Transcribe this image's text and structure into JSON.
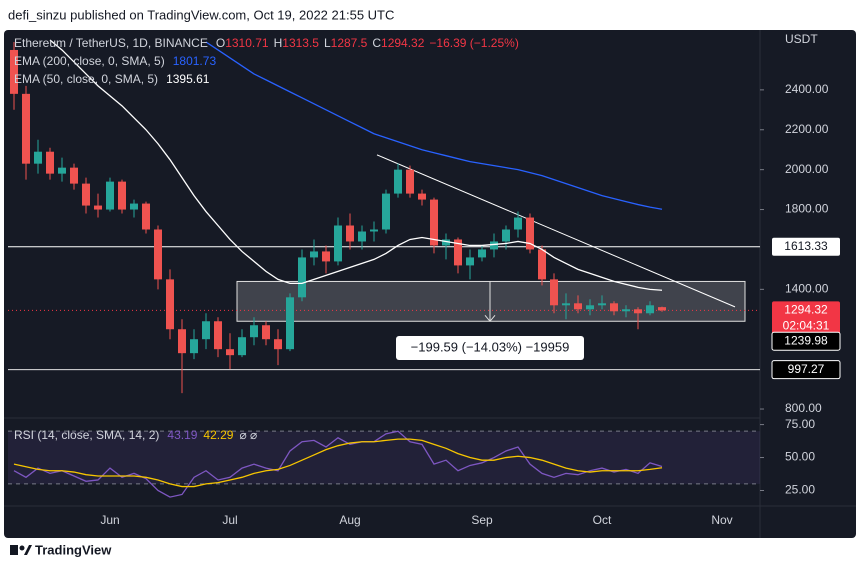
{
  "header": {
    "title": "defi_sinzu published on TradingView.com, Oct 19, 2022 21:55 UTC"
  },
  "footer": {
    "brand": "TradingView"
  },
  "chart_data": {
    "type": "candlestick",
    "symbol": "Ethereum / TetherUS, 1D, BINANCE",
    "ohlc_labels": [
      "O",
      "H",
      "L",
      "C"
    ],
    "change_label": "−16.39 (−1.25%)",
    "currency": "USDT",
    "countdown": "02:04:31",
    "up_color": "#26a69a",
    "down_color": "#ef5350",
    "categories": [
      null,
      null,
      null,
      null,
      null,
      null,
      null,
      null,
      "Jun",
      null,
      null,
      null,
      null,
      null,
      null,
      null,
      null,
      null,
      "Jul",
      null,
      null,
      null,
      null,
      null,
      null,
      null,
      null,
      null,
      "Aug",
      null,
      null,
      null,
      null,
      null,
      null,
      null,
      null,
      null,
      null,
      "Sep",
      null,
      null,
      null,
      null,
      null,
      null,
      null,
      null,
      null,
      "Oct",
      null,
      null,
      null,
      null,
      null,
      null,
      null,
      null,
      null,
      "Nov"
    ],
    "open": [
      2600,
      2380,
      2030,
      2090,
      1980,
      2010,
      1930,
      1820,
      1800,
      1940,
      1800,
      1830,
      1700,
      1450,
      1200,
      1080,
      1150,
      1240,
      1100,
      1070,
      1160,
      1220,
      1150,
      1100,
      1360,
      1560,
      1590,
      1540,
      1720,
      1640,
      1690,
      1700,
      1880,
      2000,
      1880,
      1850,
      1620,
      1650,
      1520,
      1560,
      1600,
      1640,
      1700,
      1760,
      1600,
      1450,
      1320,
      1330,
      1300,
      1320,
      1330,
      1290,
      1300,
      1280,
      1310.71,
      null,
      null,
      null,
      null,
      null
    ],
    "high": [
      2640,
      2420,
      2150,
      2110,
      2060,
      2030,
      1960,
      1880,
      1960,
      1950,
      1850,
      1840,
      1720,
      1500,
      1250,
      1200,
      1280,
      1260,
      1180,
      1200,
      1260,
      1240,
      1200,
      1380,
      1600,
      1650,
      1620,
      1760,
      1780,
      1720,
      1740,
      1900,
      2030,
      2020,
      1900,
      1860,
      1680,
      1660,
      1600,
      1620,
      1680,
      1720,
      1790,
      1780,
      1620,
      1480,
      1380,
      1370,
      1350,
      1370,
      1340,
      1320,
      1310,
      1340,
      1313.5,
      null,
      null,
      null,
      null,
      null
    ],
    "low": [
      2300,
      1950,
      1980,
      1950,
      1940,
      1900,
      1780,
      1760,
      1790,
      1780,
      1760,
      1680,
      1400,
      1150,
      880,
      1050,
      1100,
      1060,
      1000,
      1060,
      1120,
      1120,
      1020,
      1090,
      1340,
      1520,
      1480,
      1520,
      1600,
      1600,
      1640,
      1680,
      1860,
      1860,
      1820,
      1580,
      1550,
      1480,
      1450,
      1540,
      1560,
      1600,
      1660,
      1580,
      1420,
      1280,
      1250,
      1280,
      1270,
      1300,
      1270,
      1260,
      1200,
      1270,
      1287.5,
      null,
      null,
      null,
      null,
      null
    ],
    "close": [
      2380,
      2030,
      2090,
      1980,
      2010,
      1930,
      1820,
      1800,
      1940,
      1800,
      1830,
      1700,
      1450,
      1200,
      1080,
      1150,
      1240,
      1100,
      1070,
      1160,
      1220,
      1150,
      1100,
      1360,
      1560,
      1590,
      1540,
      1720,
      1640,
      1690,
      1700,
      1880,
      2000,
      1880,
      1850,
      1620,
      1650,
      1520,
      1560,
      1600,
      1640,
      1700,
      1760,
      1600,
      1450,
      1320,
      1330,
      1300,
      1320,
      1330,
      1290,
      1300,
      1280,
      1320,
      1294.32,
      null,
      null,
      null,
      null,
      null
    ],
    "series": [
      {
        "name": "EMA (200, close, 0, SMA, 5)",
        "color": "#2962ff",
        "values": [
          null,
          null,
          null,
          null,
          null,
          null,
          null,
          null,
          null,
          null,
          null,
          null,
          null,
          null,
          null,
          null,
          2640,
          2600,
          2560,
          2520,
          2480,
          2450,
          2420,
          2390,
          2360,
          2330,
          2300,
          2270,
          2240,
          2210,
          2180,
          2160,
          2140,
          2120,
          2100,
          2085,
          2070,
          2055,
          2040,
          2030,
          2020,
          2010,
          2000,
          1985,
          1970,
          1950,
          1930,
          1910,
          1890,
          1870,
          1855,
          1840,
          1825,
          1812,
          1801.73,
          null,
          null,
          null,
          null,
          null
        ]
      },
      {
        "name": "EMA (50, close, 0, SMA, 5)",
        "color": "#ffffff",
        "values": [
          null,
          null,
          null,
          2650,
          2600,
          2540,
          2480,
          2420,
          2370,
          2320,
          2260,
          2200,
          2130,
          2050,
          1960,
          1870,
          1790,
          1720,
          1650,
          1590,
          1540,
          1490,
          1450,
          1430,
          1430,
          1450,
          1470,
          1490,
          1510,
          1530,
          1550,
          1580,
          1620,
          1650,
          1660,
          1650,
          1640,
          1630,
          1620,
          1620,
          1625,
          1630,
          1640,
          1630,
          1600,
          1560,
          1530,
          1500,
          1480,
          1460,
          1440,
          1425,
          1410,
          1400,
          1395.61,
          null,
          null,
          null,
          null,
          null
        ]
      }
    ],
    "levels": [
      1613.33,
      1239.98,
      997.27
    ],
    "measure": {
      "top": 1439.57,
      "label": "−199.59 (−14.03%) −19959"
    },
    "trendline": [
      2074,
      1312
    ],
    "ylim": [
      755,
      2660
    ],
    "yticks": [
      {
        "value": 2400,
        "label": "2400.00"
      },
      {
        "value": 2200,
        "label": "2200.00"
      },
      {
        "value": 2000,
        "label": "2000.00"
      },
      {
        "value": 1800,
        "label": "1800.00"
      },
      {
        "value": 1400,
        "label": "1400.00"
      },
      {
        "value": 800,
        "label": "800.00"
      }
    ],
    "grid": false,
    "rsi": {
      "name": "RSI (14, close, SMA, 14, 2)",
      "color": "#7e57c2",
      "sma_color": "#f7c600",
      "flags": "⌀ ⌀",
      "values": [
        40,
        35,
        42,
        38,
        40,
        36,
        32,
        33,
        42,
        35,
        38,
        34,
        25,
        20,
        22,
        35,
        40,
        33,
        35,
        42,
        45,
        42,
        40,
        55,
        62,
        63,
        58,
        65,
        60,
        62,
        62,
        68,
        70,
        62,
        60,
        45,
        48,
        40,
        44,
        46,
        50,
        55,
        58,
        45,
        38,
        35,
        38,
        37,
        40,
        42,
        39,
        41,
        38,
        46,
        43.19,
        null,
        null,
        null,
        null,
        null
      ],
      "sma": [
        45,
        43,
        41,
        40,
        40,
        39,
        37,
        36,
        36,
        36,
        36,
        35,
        33,
        30,
        28,
        28,
        30,
        31,
        33,
        35,
        38,
        40,
        41,
        44,
        48,
        52,
        56,
        59,
        61,
        62,
        62,
        63,
        64,
        64,
        63,
        60,
        57,
        53,
        50,
        48,
        48,
        50,
        51,
        50,
        48,
        45,
        42,
        40,
        39,
        40,
        40,
        40,
        40,
        41,
        42.29,
        null,
        null,
        null,
        null,
        null
      ],
      "bands": [
        70,
        30
      ],
      "ylim": [
        14,
        80
      ],
      "yticks": [
        {
          "value": 75,
          "label": "75.00"
        },
        {
          "value": 50,
          "label": "50.00"
        },
        {
          "value": 25,
          "label": "25.00"
        }
      ]
    }
  }
}
